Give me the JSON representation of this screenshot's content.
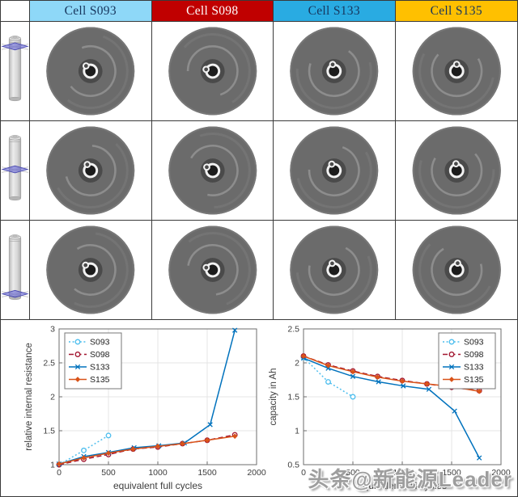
{
  "header_row": {
    "cells": [
      {
        "label": "Cell S093",
        "bg": "#8ED8F8",
        "fg": "#17365D"
      },
      {
        "label": "Cell S098",
        "bg": "#C00000",
        "fg": "#FFFFFF"
      },
      {
        "label": "Cell S133",
        "bg": "#29ABE2",
        "fg": "#17365D"
      },
      {
        "label": "Cell S135",
        "bg": "#FFC000",
        "fg": "#17365D"
      }
    ]
  },
  "watermark": {
    "text": "头条@新能源Leader"
  },
  "chart_data": [
    {
      "type": "line",
      "title": "",
      "xlabel": "equivalent full cycles",
      "ylabel": "relative internal resistance",
      "xlim": [
        0,
        2000
      ],
      "ylim": [
        1,
        3
      ],
      "xticks": [
        0,
        500,
        1000,
        1500,
        2000
      ],
      "yticks": [
        1,
        1.5,
        2,
        2.5,
        3
      ],
      "grid": true,
      "legend_position": "top-left",
      "series": [
        {
          "name": "S093",
          "color": "#4DBEEE",
          "dash": "2 2.6",
          "marker": "circle",
          "x": [
            0,
            250,
            500
          ],
          "y": [
            1.0,
            1.21,
            1.43
          ]
        },
        {
          "name": "S098",
          "color": "#A2142F",
          "dash": "6 3.5",
          "marker": "circle",
          "x": [
            0,
            250,
            500,
            750,
            1000,
            1250,
            1500,
            1780
          ],
          "y": [
            1.0,
            1.08,
            1.15,
            1.23,
            1.26,
            1.31,
            1.36,
            1.44
          ]
        },
        {
          "name": "S133",
          "color": "#0072BD",
          "dash": "",
          "marker": "x",
          "x": [
            0,
            250,
            500,
            760,
            1010,
            1270,
            1530,
            1780
          ],
          "y": [
            1.01,
            1.12,
            1.18,
            1.25,
            1.28,
            1.32,
            1.59,
            2.98
          ]
        },
        {
          "name": "S135",
          "color": "#D95319",
          "dash": "",
          "marker": "diamond",
          "x": [
            0,
            250,
            500,
            750,
            1000,
            1250,
            1500,
            1780
          ],
          "y": [
            1.01,
            1.1,
            1.17,
            1.23,
            1.27,
            1.31,
            1.36,
            1.42
          ]
        }
      ]
    },
    {
      "type": "line",
      "title": "",
      "xlabel": "equivalent full cycles",
      "ylabel": "capacity in Ah",
      "xlim": [
        0,
        2000
      ],
      "ylim": [
        0.5,
        2.5
      ],
      "xticks": [
        0,
        500,
        1000,
        1500,
        2000
      ],
      "yticks": [
        0.5,
        1,
        1.5,
        2,
        2.5
      ],
      "grid": true,
      "legend_position": "top-right",
      "series": [
        {
          "name": "S093",
          "color": "#4DBEEE",
          "dash": "2 2.6",
          "marker": "circle",
          "x": [
            0,
            250,
            500
          ],
          "y": [
            2.08,
            1.72,
            1.5
          ]
        },
        {
          "name": "S098",
          "color": "#A2142F",
          "dash": "6 3.5",
          "marker": "circle",
          "x": [
            0,
            250,
            500,
            750,
            1000,
            1250,
            1500,
            1780
          ],
          "y": [
            2.1,
            1.97,
            1.88,
            1.8,
            1.74,
            1.69,
            1.64,
            1.59
          ]
        },
        {
          "name": "S133",
          "color": "#0072BD",
          "dash": "",
          "marker": "x",
          "x": [
            0,
            250,
            500,
            760,
            1010,
            1270,
            1530,
            1780
          ],
          "y": [
            2.07,
            1.92,
            1.8,
            1.72,
            1.66,
            1.61,
            1.29,
            0.6
          ]
        },
        {
          "name": "S135",
          "color": "#D95319",
          "dash": "",
          "marker": "diamond",
          "x": [
            0,
            250,
            500,
            750,
            1000,
            1250,
            1500,
            1780
          ],
          "y": [
            2.1,
            1.96,
            1.87,
            1.79,
            1.73,
            1.69,
            1.65,
            1.58
          ]
        }
      ]
    }
  ]
}
